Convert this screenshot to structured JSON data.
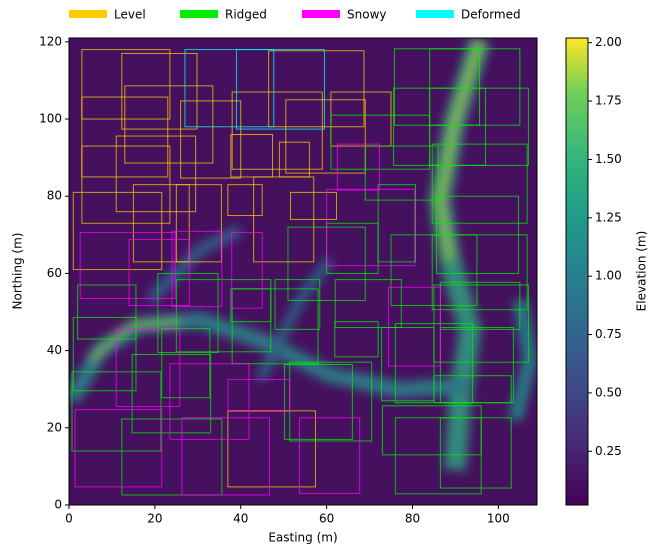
{
  "chart_data": {
    "type": "box-overlay",
    "x_label": "Easting (m)",
    "y_label": "Northing (m)",
    "xlim": [
      0,
      109
    ],
    "ylim": [
      0,
      121
    ],
    "xticks": [
      0,
      20,
      40,
      60,
      80,
      100
    ],
    "yticks": [
      0,
      20,
      40,
      60,
      80,
      100,
      120
    ],
    "colorbar": {
      "label": "Elevation (m)",
      "clim": [
        0.02,
        2.02
      ],
      "ticks": [
        0.25,
        {
          "value": 0.5,
          "label": "0.50"
        },
        0.75,
        {
          "value": 1,
          "label": "1.00"
        },
        1.25,
        {
          "value": 1.5,
          "label": "1.50"
        },
        1.75,
        {
          "value": 2,
          "label": "2.00"
        }
      ]
    },
    "series": [
      {
        "name": "Level",
        "color": "#ffcc00",
        "boxes": [
          [
            3,
            100,
            23.5,
            118
          ],
          [
            12.3,
            97.4,
            29.8,
            117
          ],
          [
            13,
            88.6,
            33.5,
            108.6
          ],
          [
            3,
            85,
            23,
            105.7
          ],
          [
            3,
            73,
            23.5,
            93
          ],
          [
            1,
            61,
            21.6,
            81
          ],
          [
            11,
            76,
            29.5,
            95.6
          ],
          [
            26,
            84.7,
            40,
            104.7
          ],
          [
            38,
            87,
            59,
            107
          ],
          [
            37.7,
            85,
            47.4,
            96
          ],
          [
            50.5,
            86,
            69,
            105
          ],
          [
            46.5,
            98,
            68.7,
            117.7
          ],
          [
            61,
            93,
            75,
            107
          ],
          [
            15,
            63,
            28,
            83
          ],
          [
            25,
            63,
            35.5,
            83
          ],
          [
            37,
            75,
            45,
            83
          ],
          [
            43,
            63,
            57,
            85
          ],
          [
            51.6,
            74,
            62.3,
            81
          ],
          [
            37,
            4.7,
            57.4,
            24.4
          ],
          [
            49,
            85,
            56,
            94
          ]
        ]
      },
      {
        "name": "Ridged",
        "color": "#00ee00",
        "boxes": [
          [
            75.8,
            98.4,
            95.6,
            118.2
          ],
          [
            84,
            98.4,
            105,
            118.2
          ],
          [
            75.6,
            88,
            97,
            108
          ],
          [
            84,
            88,
            107,
            108
          ],
          [
            61,
            87,
            84,
            101
          ],
          [
            69,
            79,
            86,
            93
          ],
          [
            84.6,
            73,
            106.7,
            93.5
          ],
          [
            85.6,
            60,
            104.7,
            80
          ],
          [
            75,
            51.7,
            95,
            70
          ],
          [
            84.6,
            50.6,
            106.7,
            70
          ],
          [
            72,
            63,
            80.7,
            83
          ],
          [
            51,
            53,
            69,
            72
          ],
          [
            60,
            60,
            72,
            73
          ],
          [
            20.7,
            39.5,
            34.7,
            60
          ],
          [
            2,
            43,
            15.6,
            57
          ],
          [
            1,
            29.6,
            15.6,
            48.6
          ],
          [
            14.7,
            18.7,
            33,
            39
          ],
          [
            0.7,
            14,
            21.4,
            34.5
          ],
          [
            12.3,
            2.6,
            35.6,
            22.3
          ],
          [
            25,
            39.7,
            47,
            58.4
          ],
          [
            38,
            36.6,
            58,
            56
          ],
          [
            37.7,
            47.5,
            47,
            56
          ],
          [
            48,
            45.5,
            58.4,
            58.4
          ],
          [
            62,
            46,
            77.4,
            58.4
          ],
          [
            61.9,
            38.4,
            72,
            47.5
          ],
          [
            51.4,
            16.6,
            70.5,
            37
          ],
          [
            50.2,
            17,
            66,
            36.4
          ],
          [
            72.8,
            27,
            85,
            46
          ],
          [
            76,
            26.5,
            94,
            47
          ],
          [
            86.5,
            26.5,
            103.5,
            46
          ],
          [
            85,
            26.5,
            103,
            33.5
          ],
          [
            73,
            13,
            96,
            25.7
          ],
          [
            76,
            2.9,
            96,
            22.6
          ],
          [
            86.5,
            4.4,
            103,
            22.6
          ],
          [
            85,
            37,
            107,
            57
          ],
          [
            86.5,
            45.5,
            105,
            57.7
          ],
          [
            21.6,
            27.8,
            32.8,
            45.7
          ]
        ]
      },
      {
        "name": "Snowy",
        "color": "#ff00ff",
        "boxes": [
          [
            2.6,
            53.5,
            24.7,
            70.6
          ],
          [
            14,
            51.7,
            28,
            68.8
          ],
          [
            24,
            51.4,
            35.6,
            70.9
          ],
          [
            37.9,
            51,
            45,
            70.6
          ],
          [
            60,
            62,
            80.5,
            81.8
          ],
          [
            62.5,
            81.6,
            72.3,
            93.5
          ],
          [
            74.4,
            36,
            86.5,
            56.4
          ],
          [
            1.4,
            4.7,
            21.6,
            24.7
          ],
          [
            11,
            25.5,
            25.8,
            45.5
          ],
          [
            23.5,
            17,
            41.9,
            36.6
          ],
          [
            26.3,
            2.6,
            46.7,
            22.6
          ],
          [
            37,
            24.2,
            51.4,
            32.5
          ],
          [
            53.7,
            3,
            67.7,
            22.6
          ]
        ]
      },
      {
        "name": "Deformed",
        "color": "#00ffff",
        "boxes": [
          [
            27,
            98,
            47.7,
            118
          ],
          [
            39,
            97.4,
            59.5,
            118
          ]
        ]
      }
    ]
  }
}
